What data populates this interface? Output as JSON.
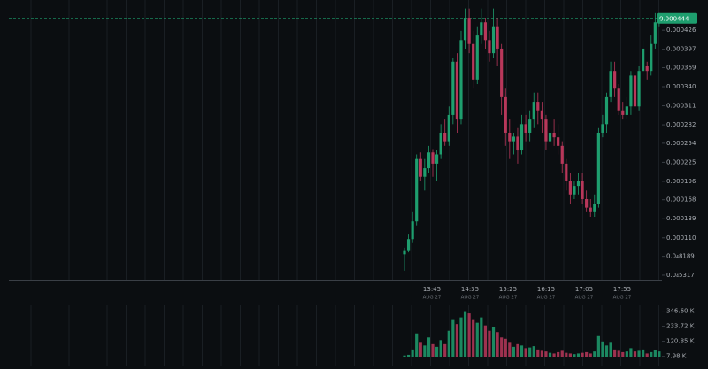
{
  "chart_data": {
    "type": "candlestick",
    "up_color": "#1e9e6e",
    "down_color": "#b8375a",
    "open": [
      8.5e-05,
      9e-05,
      0.000108,
      0.000135,
      0.00023,
      0.000203,
      0.000216,
      0.00024,
      0.000223,
      0.000237,
      0.00027,
      0.000257,
      0.000297,
      0.000378,
      0.00029,
      0.000411,
      0.000445,
      0.000405,
      0.000351,
      0.000418,
      0.000438,
      0.000411,
      0.000391,
      0.000432,
      0.000398,
      0.000324,
      0.00027,
      0.000257,
      0.000264,
      0.000243,
      0.000283,
      0.00027,
      0.00029,
      0.000317,
      0.000304,
      0.00029,
      0.000257,
      0.00027,
      0.000263,
      0.00025,
      0.000223,
      0.000196,
      0.000176,
      0.000189,
      0.000196,
      0.000169,
      0.000156,
      0.000149,
      0.000162,
      0.00027,
      0.000283,
      0.000324,
      0.000364,
      0.000337,
      0.000304,
      0.000297,
      0.00031,
      0.000357,
      0.00031,
      0.000364,
      0.000371,
      0.000364,
      0.000405,
      0.000438
    ],
    "high": [
      9.5e-05,
      0.000115,
      0.000149,
      0.000237,
      0.00024,
      0.00023,
      0.00025,
      0.000245,
      0.000243,
      0.000283,
      0.00029,
      0.00031,
      0.000384,
      0.000391,
      0.000425,
      0.000459,
      0.000459,
      0.000425,
      0.000432,
      0.000459,
      0.000445,
      0.000425,
      0.000459,
      0.000445,
      0.000405,
      0.000337,
      0.00029,
      0.00027,
      0.000277,
      0.000297,
      0.000297,
      0.000304,
      0.000331,
      0.000331,
      0.000317,
      0.000297,
      0.000283,
      0.00029,
      0.000283,
      0.000257,
      0.00023,
      0.000209,
      0.000196,
      0.000209,
      0.000209,
      0.000182,
      0.000169,
      0.000176,
      0.000277,
      0.000297,
      0.000331,
      0.000378,
      0.000378,
      0.000344,
      0.000317,
      0.000324,
      0.000364,
      0.000364,
      0.000371,
      0.000411,
      0.000378,
      0.000418,
      0.000452,
      0.000452
    ],
    "low": [
      6e-05,
      8.8e-05,
      0.000102,
      0.000129,
      0.000196,
      0.000182,
      0.000209,
      0.000203,
      0.000196,
      0.00023,
      0.00025,
      0.00025,
      0.000283,
      0.00027,
      0.000283,
      0.000398,
      0.000391,
      0.000337,
      0.000344,
      0.000405,
      0.000398,
      0.000378,
      0.000384,
      0.000371,
      0.000297,
      0.00025,
      0.00023,
      0.000237,
      0.000223,
      0.000237,
      0.000257,
      0.000257,
      0.000277,
      0.000283,
      0.00027,
      0.000243,
      0.000243,
      0.00025,
      0.000237,
      0.000209,
      0.000182,
      0.000162,
      0.000169,
      0.000176,
      0.000162,
      0.000149,
      0.000142,
      0.000142,
      0.000156,
      0.000263,
      0.00027,
      0.000317,
      0.000324,
      0.000297,
      0.00029,
      0.00029,
      0.000297,
      0.000304,
      0.000304,
      0.000357,
      0.000351,
      0.000357,
      0.000398,
      0.000432
    ],
    "close": [
      9e-05,
      0.000108,
      0.000135,
      0.00023,
      0.000203,
      0.000216,
      0.00024,
      0.000223,
      0.000237,
      0.00027,
      0.000257,
      0.000297,
      0.000378,
      0.00029,
      0.000411,
      0.000445,
      0.000405,
      0.000351,
      0.000418,
      0.000438,
      0.000411,
      0.000391,
      0.000432,
      0.000398,
      0.000324,
      0.00027,
      0.000257,
      0.000264,
      0.000243,
      0.000283,
      0.00027,
      0.00029,
      0.000317,
      0.000304,
      0.00029,
      0.000257,
      0.00027,
      0.000263,
      0.00025,
      0.000223,
      0.000196,
      0.000176,
      0.000189,
      0.000196,
      0.000169,
      0.000156,
      0.000149,
      0.000162,
      0.00027,
      0.000283,
      0.000324,
      0.000364,
      0.000337,
      0.000304,
      0.000297,
      0.00031,
      0.000357,
      0.00031,
      0.000364,
      0.000398,
      0.000364,
      0.000405,
      0.000438,
      0.000444
    ],
    "volume": [
      15,
      20,
      60,
      180,
      110,
      90,
      150,
      100,
      80,
      130,
      100,
      200,
      280,
      250,
      300,
      340,
      330,
      280,
      260,
      300,
      240,
      200,
      230,
      190,
      150,
      140,
      110,
      80,
      100,
      90,
      70,
      75,
      85,
      60,
      50,
      45,
      35,
      30,
      40,
      50,
      35,
      30,
      25,
      30,
      35,
      40,
      30,
      45,
      160,
      120,
      90,
      110,
      60,
      50,
      40,
      45,
      70,
      45,
      50,
      60,
      30,
      40,
      55,
      45
    ],
    "ylim": [
      4.64e-05,
      0.000472
    ],
    "yticks": [
      {
        "value": 0.000426,
        "label": "0.000426"
      },
      {
        "value": 0.000397,
        "label": "0.000397"
      },
      {
        "value": 0.000369,
        "label": "0.000369"
      },
      {
        "value": 0.00034,
        "label": "0.000340"
      },
      {
        "value": 0.000311,
        "label": "0.000311"
      },
      {
        "value": 0.000282,
        "label": "0.000282"
      },
      {
        "value": 0.000254,
        "label": "0.000254"
      },
      {
        "value": 0.000225,
        "label": "0.000225"
      },
      {
        "value": 0.000196,
        "label": "0.000196"
      },
      {
        "value": 0.000168,
        "label": "0.000168"
      },
      {
        "value": 0.000139,
        "label": "0.000139"
      },
      {
        "value": 0.00011,
        "label": "0.000110"
      },
      {
        "value": 8.189e-05,
        "label": "0.0₄8189"
      },
      {
        "value": 5.317e-05,
        "label": "0.0₄5317"
      }
    ],
    "last_price": {
      "value": 0.000444,
      "label": "0.000444"
    },
    "volume_lim": [
      -40,
      390
    ],
    "volume_ticks": [
      {
        "value": 346.6,
        "label": "346.60 K"
      },
      {
        "value": 233.72,
        "label": "233.72 K"
      },
      {
        "value": 120.85,
        "label": "120.85 K"
      },
      {
        "value": 7.98,
        "label": "7.98 K"
      }
    ],
    "x_labels": [
      {
        "time": "13:45",
        "date": "AUG 27"
      },
      {
        "time": "14:35",
        "date": "AUG 27"
      },
      {
        "time": "15:25",
        "date": "AUG 27"
      },
      {
        "time": "16:15",
        "date": "AUG 27"
      },
      {
        "time": "17:05",
        "date": "AUG 27"
      },
      {
        "time": "17:55",
        "date": "AUG 27"
      }
    ]
  }
}
